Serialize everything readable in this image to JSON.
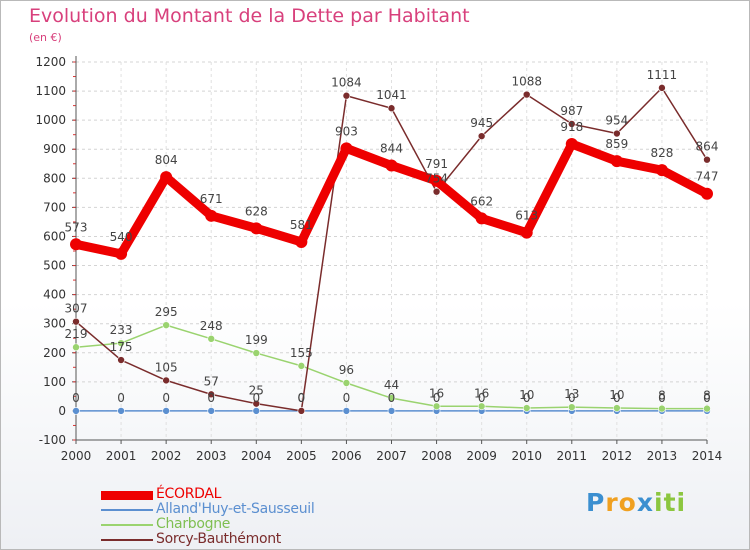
{
  "title": "Evolution du Montant de la Dette par Habitant",
  "subtitle": "(en €)",
  "colors": {
    "title": "#d8407c",
    "axis": "#555555",
    "ecordal": "#ee0000",
    "allandhuy": "#5b8fd0",
    "charbogne": "#9ad36f",
    "sorcy": "#7a2c2c"
  },
  "chart_data": {
    "type": "line",
    "title": "Evolution du Montant de la Dette par Habitant",
    "ylabel": "(en €)",
    "ylim": [
      -100,
      1200
    ],
    "yticks": [
      -100,
      0,
      100,
      200,
      300,
      400,
      500,
      600,
      700,
      800,
      900,
      1000,
      1100,
      1200
    ],
    "categories": [
      "2000",
      "2001",
      "2002",
      "2003",
      "2004",
      "2005",
      "2006",
      "2007",
      "2008",
      "2009",
      "2010",
      "2011",
      "2012",
      "2013",
      "2014"
    ],
    "series": [
      {
        "name": "ÉCORDAL",
        "values": [
          573,
          540,
          804,
          671,
          628,
          581,
          903,
          844,
          791,
          662,
          613,
          918,
          859,
          828,
          747
        ],
        "labels": [
          "573",
          "540",
          "804",
          "671",
          "628",
          "581",
          "903",
          "844",
          "791",
          "662",
          "613",
          "918",
          "859",
          "828",
          "747"
        ]
      },
      {
        "name": "Alland'Huy-et-Sausseuil",
        "values": [
          0,
          0,
          0,
          0,
          0,
          0,
          0,
          0,
          0,
          0,
          0,
          0,
          0,
          0,
          0
        ],
        "labels": [
          "0",
          "0",
          "0",
          "0",
          "0",
          "0",
          "0",
          "0",
          "0",
          "0",
          "0",
          "0",
          "0",
          "0",
          "0"
        ]
      },
      {
        "name": "Charbogne",
        "values": [
          219,
          233,
          295,
          248,
          199,
          155,
          96,
          44,
          16,
          16,
          10,
          13,
          10,
          8,
          8
        ],
        "labels": [
          "219",
          "233",
          "295",
          "248",
          "199",
          "155",
          "96",
          "44",
          "16",
          "16",
          "10",
          "13",
          "10",
          "8",
          "8"
        ]
      },
      {
        "name": "Sorcy-Bauthémont",
        "values": [
          307,
          175,
          105,
          57,
          25,
          0,
          1084,
          1041,
          754,
          945,
          1088,
          987,
          954,
          1111,
          864
        ],
        "labels": [
          "307",
          "175",
          "105",
          "57",
          "25",
          "0",
          "1084",
          "1041",
          "754",
          "945",
          "1088",
          "987",
          "954",
          "1111",
          "864"
        ]
      }
    ]
  },
  "legend": [
    {
      "label": "ÉCORDAL"
    },
    {
      "label": "Alland'Huy-et-Sausseuil"
    },
    {
      "label": "Charbogne"
    },
    {
      "label": "Sorcy-Bauthémont"
    }
  ],
  "logo": {
    "text": "Proxiti",
    "letters": [
      "P",
      "r",
      "o",
      "x",
      "i",
      "t",
      "i"
    ]
  }
}
